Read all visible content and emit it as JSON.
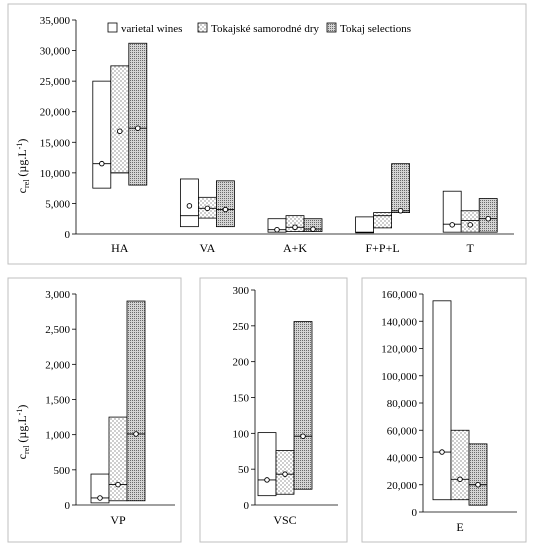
{
  "legend": {
    "entries": [
      "varietal wines",
      "Tokajské samorodné dry",
      "Tokaj selections"
    ]
  },
  "ylabel": {
    "main": "c",
    "sub": "rel",
    "unit_open": " (µg.L",
    "unit_sup": "-1",
    "unit_close": ")"
  },
  "chart_data": [
    {
      "id": "top",
      "type": "bar",
      "chart_kind": "floating range bars with mean markers",
      "ylim": [
        0,
        35000
      ],
      "yticks": [
        0,
        5000,
        10000,
        15000,
        20000,
        25000,
        30000,
        35000
      ],
      "ytick_labels": [
        "0",
        "5,000",
        "10,000",
        "15,000",
        "20,000",
        "25,000",
        "30,000",
        "35,000"
      ],
      "categories": [
        "HA",
        "VA",
        "A+K",
        "F+P+L",
        "T"
      ],
      "series": [
        {
          "name": "varietal wines",
          "ranges": [
            [
              7500,
              25000
            ],
            [
              1200,
              9000
            ],
            [
              300,
              2500
            ],
            [
              200,
              2800
            ],
            [
              300,
              7000
            ]
          ],
          "medians": [
            11500,
            3000,
            700,
            300,
            1600
          ],
          "means": [
            11500,
            4600,
            700,
            null,
            1500
          ]
        },
        {
          "name": "Tokajské samorodné dry",
          "ranges": [
            [
              10000,
              27500
            ],
            [
              2600,
              6000
            ],
            [
              400,
              3000
            ],
            [
              1000,
              3500
            ],
            [
              300,
              3800
            ]
          ],
          "medians": [
            10000,
            4200,
            1100,
            3000,
            2200
          ],
          "means": [
            16800,
            4200,
            1100,
            null,
            1500
          ]
        },
        {
          "name": "Tokaj selections",
          "ranges": [
            [
              8000,
              31200
            ],
            [
              1200,
              8700
            ],
            [
              400,
              2500
            ],
            [
              3500,
              11500
            ],
            [
              300,
              5800
            ]
          ],
          "medians": [
            17300,
            4000,
            800,
            3800,
            2500
          ],
          "means": [
            17300,
            4000,
            800,
            3800,
            2500
          ]
        }
      ]
    },
    {
      "id": "vp",
      "type": "bar",
      "ylim": [
        0,
        3000
      ],
      "yticks": [
        0,
        500,
        1000,
        1500,
        2000,
        2500,
        3000
      ],
      "ytick_labels": [
        "0",
        "500",
        "1,000",
        "1,500",
        "2,000",
        "2,500",
        "3,000"
      ],
      "categories": [
        "VP"
      ],
      "series": [
        {
          "name": "varietal wines",
          "ranges": [
            [
              30,
              440
            ]
          ],
          "medians": [
            100
          ],
          "means": [
            100
          ]
        },
        {
          "name": "Tokajské samorodné dry",
          "ranges": [
            [
              60,
              1250
            ]
          ],
          "medians": [
            290
          ],
          "means": [
            290
          ]
        },
        {
          "name": "Tokaj selections",
          "ranges": [
            [
              60,
              2900
            ]
          ],
          "medians": [
            1010
          ],
          "means": [
            1010
          ]
        }
      ]
    },
    {
      "id": "vsc",
      "type": "bar",
      "ylim": [
        0,
        300
      ],
      "yticks": [
        0,
        50,
        100,
        150,
        200,
        250,
        300
      ],
      "ytick_labels": [
        "0",
        "50",
        "100",
        "150",
        "200",
        "250",
        "300"
      ],
      "categories": [
        "VSC"
      ],
      "series": [
        {
          "name": "varietal wines",
          "ranges": [
            [
              13,
              101
            ]
          ],
          "medians": [
            35
          ],
          "means": [
            35
          ]
        },
        {
          "name": "Tokajské samorodné dry",
          "ranges": [
            [
              15,
              76
            ]
          ],
          "medians": [
            43
          ],
          "means": [
            43
          ]
        },
        {
          "name": "Tokaj selections",
          "ranges": [
            [
              22,
              256
            ]
          ],
          "medians": [
            96
          ],
          "means": [
            96
          ]
        }
      ]
    },
    {
      "id": "e",
      "type": "bar",
      "ylim": [
        0,
        160000
      ],
      "yticks": [
        0,
        20000,
        40000,
        60000,
        80000,
        100000,
        120000,
        140000,
        160000
      ],
      "ytick_labels": [
        "0",
        "20,000",
        "40,000",
        "60,000",
        "80,000",
        "100,000",
        "120,000",
        "140,000",
        "160,000"
      ],
      "categories": [
        "E"
      ],
      "series": [
        {
          "name": "varietal wines",
          "ranges": [
            [
              9000,
              155000
            ]
          ],
          "medians": [
            44000
          ],
          "means": [
            44000
          ]
        },
        {
          "name": "Tokajské samorodné dry",
          "ranges": [
            [
              9000,
              60000
            ]
          ],
          "medians": [
            24000
          ],
          "means": [
            24000
          ]
        },
        {
          "name": "Tokaj selections",
          "ranges": [
            [
              5000,
              50000
            ]
          ],
          "medians": [
            20000
          ],
          "means": [
            20000
          ]
        }
      ]
    }
  ]
}
